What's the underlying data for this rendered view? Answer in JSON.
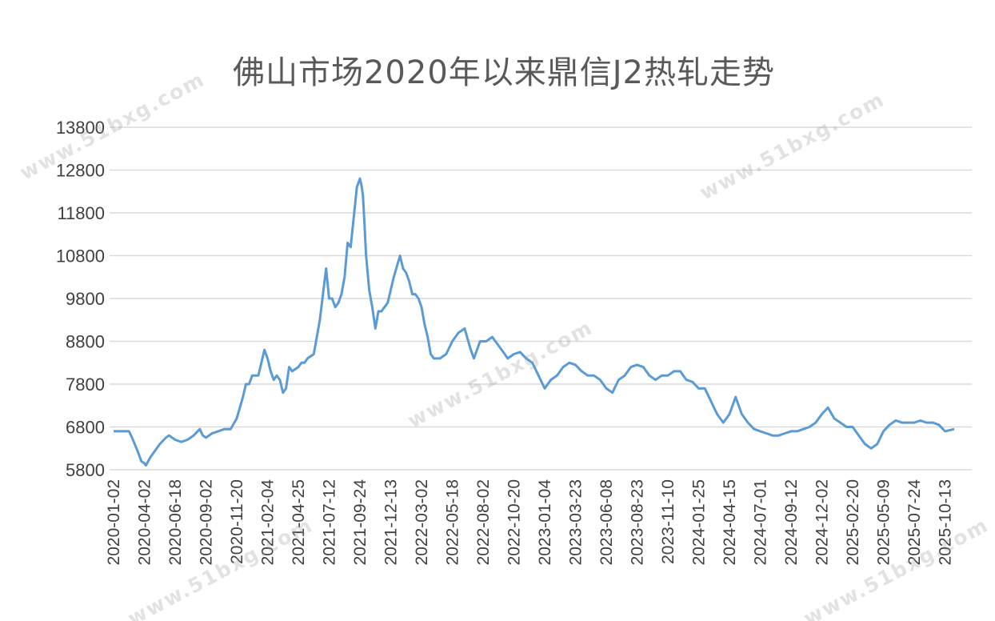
{
  "watermark": "www.51bxg.com",
  "chart_data": {
    "type": "line",
    "title": "佛山市场2020年以来鼎信J2热轧走势",
    "xlabel": "",
    "ylabel": "",
    "ylim": [
      5800,
      13800
    ],
    "yticks": [
      5800,
      6800,
      7800,
      8800,
      9800,
      10800,
      11800,
      12800,
      13800
    ],
    "xtick_labels": [
      "2020-01-02",
      "2020-04-02",
      "2020-06-18",
      "2020-09-02",
      "2020-11-20",
      "2021-02-04",
      "2021-04-25",
      "2021-07-12",
      "2021-09-24",
      "2021-12-13",
      "2022-03-02",
      "2022-05-18",
      "2022-08-02",
      "2022-10-20",
      "2023-01-04",
      "2023-03-23",
      "2023-06-08",
      "2023-08-23",
      "2023-11-10",
      "2024-01-25",
      "2024-04-15",
      "2024-07-01",
      "2024-09-12",
      "2024-12-02",
      "2025-02-20",
      "2025-05-09",
      "2025-07-24",
      "2025-10-13"
    ],
    "grid": "horizontal",
    "legend": "none",
    "line_color": "#5b9bd5",
    "series": [
      {
        "x_index": [
          0,
          0.5,
          0.6,
          0.8,
          0.9,
          1.0,
          1.05,
          1.2,
          1.3,
          1.5,
          1.7,
          1.8,
          2.0,
          2.2,
          2.4,
          2.6,
          2.8,
          2.9,
          3.0,
          3.1,
          3.2,
          3.4,
          3.6,
          3.8,
          4.0,
          4.2,
          4.3,
          4.4,
          4.5,
          4.6,
          4.7,
          4.9,
          5.0,
          5.1,
          5.2,
          5.3,
          5.4,
          5.5,
          5.6,
          5.7,
          5.8,
          6.0,
          6.1,
          6.2,
          6.3,
          6.5,
          6.7,
          6.9,
          7.0,
          7.1,
          7.2,
          7.3,
          7.4,
          7.5,
          7.6,
          7.7,
          7.9,
          8.0,
          8.05,
          8.1,
          8.15,
          8.2,
          8.3,
          8.4,
          8.5,
          8.6,
          8.7,
          8.8,
          8.9,
          9.1,
          9.3,
          9.4,
          9.5,
          9.6,
          9.7,
          9.8,
          9.9,
          10.0,
          10.1,
          10.2,
          10.3,
          10.4,
          10.6,
          10.8,
          11.0,
          11.2,
          11.4,
          11.6,
          11.7,
          11.9,
          12.1,
          12.3,
          12.5,
          12.7,
          12.8,
          13.0,
          13.2,
          13.4,
          13.6,
          13.8,
          14.0,
          14.2,
          14.4,
          14.6,
          14.8,
          15.0,
          15.2,
          15.4,
          15.6,
          15.8,
          16.0,
          16.2,
          16.4,
          16.6,
          16.8,
          17.0,
          17.2,
          17.4,
          17.6,
          17.8,
          18.0,
          18.2,
          18.4,
          18.6,
          18.8,
          19.0,
          19.2,
          19.4,
          19.6,
          19.8,
          20.0,
          20.2,
          20.4,
          20.6,
          20.8,
          21.0,
          21.2,
          21.4,
          21.6,
          21.8,
          22.0,
          22.2,
          22.4,
          22.6,
          22.8,
          23.0,
          23.2,
          23.4,
          23.6,
          23.8,
          24.0,
          24.2,
          24.4,
          24.6,
          24.8,
          25.0,
          25.2,
          25.4,
          25.6,
          25.8,
          26.0,
          26.2,
          26.4,
          26.6,
          26.8,
          27.0,
          27.3
        ],
        "values": [
          6700,
          6700,
          6550,
          6200,
          6000,
          5950,
          5900,
          6100,
          6200,
          6400,
          6550,
          6600,
          6500,
          6450,
          6500,
          6600,
          6750,
          6600,
          6550,
          6600,
          6650,
          6700,
          6750,
          6750,
          7000,
          7500,
          7800,
          7800,
          8000,
          8000,
          8000,
          8600,
          8400,
          8100,
          7900,
          8000,
          7900,
          7600,
          7700,
          8200,
          8100,
          8200,
          8300,
          8300,
          8400,
          8500,
          9300,
          10500,
          9800,
          9800,
          9600,
          9700,
          9900,
          10300,
          11100,
          11000,
          12400,
          12600,
          12450,
          12200,
          11500,
          10800,
          10000,
          9600,
          9100,
          9500,
          9500,
          9600,
          9700,
          10300,
          10800,
          10500,
          10400,
          10200,
          9900,
          9900,
          9800,
          9600,
          9200,
          8900,
          8500,
          8400,
          8400,
          8500,
          8800,
          9000,
          9100,
          8600,
          8400,
          8800,
          8800,
          8900,
          8700,
          8500,
          8400,
          8500,
          8550,
          8400,
          8300,
          8000,
          7700,
          7900,
          8000,
          8200,
          8300,
          8250,
          8100,
          8000,
          8000,
          7900,
          7700,
          7600,
          7900,
          8000,
          8200,
          8250,
          8200,
          8000,
          7900,
          8000,
          8000,
          8100,
          8100,
          7900,
          7850,
          7700,
          7700,
          7400,
          7100,
          6900,
          7100,
          7500,
          7100,
          6900,
          6750,
          6700,
          6650,
          6600,
          6600,
          6650,
          6700,
          6700,
          6750,
          6800,
          6900,
          7100,
          7250,
          7000,
          6900,
          6800,
          6800,
          6600,
          6400,
          6300,
          6400,
          6700,
          6850,
          6950,
          6900,
          6900,
          6900,
          6950,
          6900,
          6900,
          6850,
          6700,
          6750
        ]
      }
    ]
  }
}
